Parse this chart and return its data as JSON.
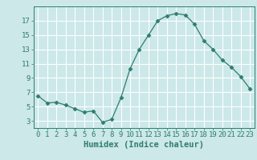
{
  "x": [
    0,
    1,
    2,
    3,
    4,
    5,
    6,
    7,
    8,
    9,
    10,
    11,
    12,
    13,
    14,
    15,
    16,
    17,
    18,
    19,
    20,
    21,
    22,
    23
  ],
  "y": [
    6.5,
    5.5,
    5.6,
    5.2,
    4.7,
    4.2,
    4.4,
    2.8,
    3.2,
    6.2,
    10.3,
    13.0,
    15.0,
    17.0,
    17.7,
    18.0,
    17.8,
    16.5,
    14.2,
    13.0,
    11.5,
    10.5,
    9.2,
    7.5
  ],
  "line_color": "#2e7d6e",
  "marker": "D",
  "marker_size": 2.5,
  "background_color": "#cce8e8",
  "grid_color": "#ffffff",
  "xlabel": "Humidex (Indice chaleur)",
  "xlim": [
    -0.5,
    23.5
  ],
  "ylim": [
    2.0,
    19.0
  ],
  "yticks": [
    3,
    5,
    7,
    9,
    11,
    13,
    15,
    17
  ],
  "xticks": [
    0,
    1,
    2,
    3,
    4,
    5,
    6,
    7,
    8,
    9,
    10,
    11,
    12,
    13,
    14,
    15,
    16,
    17,
    18,
    19,
    20,
    21,
    22,
    23
  ],
  "tick_color": "#2e7d6e",
  "label_color": "#2e7d6e",
  "fontsize_xlabel": 7.5,
  "fontsize_tick": 6.5
}
